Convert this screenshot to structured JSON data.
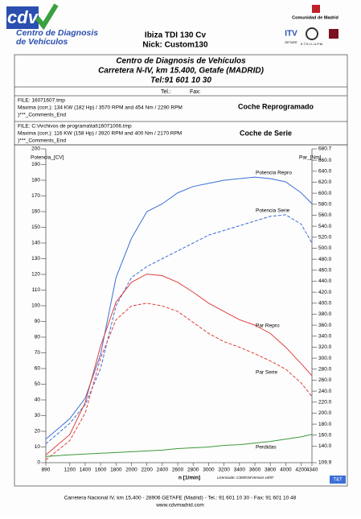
{
  "header": {
    "logo_text": "cdv",
    "logo_subtitle": "Centro de Diagnosis de Vehículos",
    "vehicle": "Ibiza TDI 130 Cv",
    "nick": "Nick: Custom130",
    "right_logos": [
      "Comunidad de Madrid",
      "ITV",
      "GETAFE",
      "E.T.S.I.I.-U.P.M."
    ]
  },
  "address_box": {
    "name": "Centro de Diagnosis de Vehículos",
    "address": "Carretera N-IV, km 15.400, Getafe (MADRID)",
    "tel": "Tel:91 601 10 30",
    "tel_label": "Tel.:",
    "fax_label": "Fax:"
  },
  "files": [
    {
      "file": "FILE: 16071607.tmp",
      "maxima": "Maxima (corr.): 134 KW (182 Hp) / 3570 RPM  and  454 Nm / 2290 RPM",
      "comments": ")***_Comments_End",
      "label": "Coche Reprogramado"
    },
    {
      "file": "FILE: C:\\Archivos de programa\\tat\\16071006.tmp",
      "maxima": "Maxima (corr.): 116 KW (158 Hp) / 3920 RPM  and  400 Nm / 2170 RPM",
      "comments": ")***_Comments_End",
      "label": "Coche de Serie"
    }
  ],
  "chart_data": {
    "type": "line",
    "xlabel": "n  [1/min]",
    "ylabel": "Potencia_[CV]",
    "y2label": "Par_[Nm]",
    "annotations": [
      "Licenciado: CSM/GM",
      "Version v4/97",
      "T&T"
    ],
    "x": [
      890,
      1200,
      1400,
      1600,
      1800,
      2000,
      2200,
      2400,
      2600,
      2800,
      3000,
      3200,
      3400,
      3600,
      3800,
      4000,
      4200,
      4340
    ],
    "xlim": [
      890,
      4340
    ],
    "xticks": [
      890,
      1200,
      1400,
      1600,
      1800,
      2000,
      2200,
      2400,
      2600,
      2800,
      3000,
      3200,
      3400,
      3600,
      3800,
      4000,
      4200,
      4340
    ],
    "ylim": [
      0,
      200
    ],
    "yticks": [
      0,
      10,
      20,
      30,
      40,
      50,
      60,
      70,
      80,
      90,
      100,
      110,
      120,
      130,
      140,
      150,
      160,
      170,
      180,
      190,
      200
    ],
    "y2lim": [
      109.9,
      680.7
    ],
    "y2ticks": [
      109.9,
      {
        "value": 140,
        "label": "140.0"
      },
      {
        "value": 160,
        "label": "160.0"
      },
      {
        "value": 180,
        "label": "180.0"
      },
      {
        "value": 200,
        "label": "200.0"
      },
      {
        "value": 220,
        "label": "220.0"
      },
      {
        "value": 240,
        "label": "240.0"
      },
      {
        "value": 260,
        "label": "260.0"
      },
      {
        "value": 280,
        "label": "280.0"
      },
      {
        "value": 300,
        "label": "300.0"
      },
      {
        "value": 320,
        "label": "320.0"
      },
      {
        "value": 340,
        "label": "340.0"
      },
      {
        "value": 360,
        "label": "360.0"
      },
      {
        "value": 380,
        "label": "380.0"
      },
      {
        "value": 400,
        "label": "400.0"
      },
      {
        "value": 420,
        "label": "420.0"
      },
      {
        "value": 440,
        "label": "440.0"
      },
      {
        "value": 460,
        "label": "460.0"
      },
      {
        "value": 480,
        "label": "480.0"
      },
      {
        "value": 500,
        "label": "500.0"
      },
      {
        "value": 520,
        "label": "520.0"
      },
      {
        "value": 540,
        "label": "540.0"
      },
      {
        "value": 560,
        "label": "560.0"
      },
      {
        "value": 580,
        "label": "580.0"
      },
      {
        "value": 600,
        "label": "600.0"
      },
      {
        "value": 620,
        "label": "620.0"
      },
      {
        "value": 640,
        "label": "640.0"
      },
      {
        "value": 660,
        "label": "660.0"
      },
      680.7
    ],
    "grid": false,
    "series": [
      {
        "name": "Potencia Repro",
        "color": "#3b6fd6",
        "dashed": false,
        "values": [
          15,
          28,
          41,
          69,
          118,
          143,
          160,
          165,
          172,
          176,
          178,
          180,
          181,
          182,
          181,
          179,
          172,
          165
        ]
      },
      {
        "name": "Potencia Serie",
        "color": "#3b6fd6",
        "dashed": true,
        "values": [
          12,
          25,
          37,
          60,
          100,
          118,
          125,
          130,
          135,
          140,
          145,
          148,
          151,
          154,
          157,
          158,
          152,
          140
        ]
      },
      {
        "name": "Par Repro",
        "color": "#e0403f",
        "dashed": false,
        "axis": "y2",
        "values": [
          124,
          161,
          219,
          322,
          402,
          438,
          453,
          450,
          438,
          420,
          400,
          385,
          370,
          360,
          345,
          320,
          290,
          268
        ]
      },
      {
        "name": "Par Serie",
        "color": "#e0403f",
        "dashed": true,
        "axis": "y2",
        "values": [
          115,
          150,
          200,
          300,
          370,
          395,
          400,
          395,
          385,
          365,
          345,
          330,
          320,
          308,
          295,
          280,
          255,
          230
        ]
      },
      {
        "name": "Perdidas",
        "color": "#3a9a3a",
        "dashed": false,
        "values": [
          4,
          5,
          5.5,
          6,
          6.5,
          7,
          7.5,
          8,
          9,
          9.5,
          10,
          11,
          11.5,
          12.5,
          13.5,
          15,
          16.5,
          18
        ]
      }
    ]
  },
  "footer": {
    "address": "Carretera Nacional IV, km 15,400 - 28906 GETAFE (Madrid) - Tel.: 91 601 10 30 - Fax: 91 601 10 48",
    "web": "www.cdvmadrid.com"
  }
}
